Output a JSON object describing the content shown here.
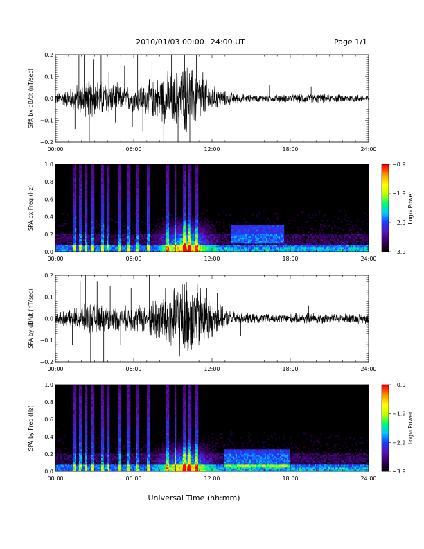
{
  "page": {
    "title": "2010/01/03  00:00−24:00 UT",
    "page_label": "Page 1/1",
    "xlabel": "Universal Time (hh:mm)"
  },
  "colors": {
    "trace": "#000000",
    "background": "#ffffff",
    "colormap": [
      "#000000",
      "#3a0060",
      "#5a14b8",
      "#1a3cff",
      "#00c8ff",
      "#00ff64",
      "#c8ff00",
      "#ffff00",
      "#ff9600",
      "#ff0000"
    ]
  },
  "chart_data": [
    {
      "type": "line",
      "name": "bx-time-series",
      "ylabel": "SPA bx dB/dt (nT/sec)",
      "xlim": [
        0,
        24
      ],
      "ylim": [
        -0.2,
        0.2
      ],
      "x_ticks": [
        "00:00",
        "06:00",
        "12:00",
        "18:00",
        "24:00"
      ],
      "y_ticks": [
        "−0.2",
        "−0.1",
        "0.0",
        "0.1",
        "0.2"
      ],
      "y_tick_values": [
        -0.2,
        -0.1,
        0.0,
        0.1,
        0.2
      ],
      "noise_amplitude_envelope": {
        "hour": [
          0,
          1,
          2,
          3,
          4,
          5,
          6,
          7,
          8,
          9,
          10,
          11,
          12,
          13,
          14,
          15,
          16,
          17,
          18,
          19,
          20,
          21,
          22,
          23,
          24
        ],
        "amplitude": [
          0.03,
          0.05,
          0.09,
          0.1,
          0.09,
          0.07,
          0.07,
          0.09,
          0.12,
          0.15,
          0.18,
          0.14,
          0.07,
          0.04,
          0.025,
          0.02,
          0.02,
          0.02,
          0.02,
          0.025,
          0.025,
          0.02,
          0.02,
          0.02,
          0.02
        ]
      },
      "spikes": [
        {
          "hour": 1.2,
          "value": 0.12
        },
        {
          "hour": 1.5,
          "value": -0.14
        },
        {
          "hour": 1.8,
          "value": 0.2
        },
        {
          "hour": 2.2,
          "value": 0.2
        },
        {
          "hour": 2.6,
          "value": -0.2
        },
        {
          "hour": 2.9,
          "value": 0.18
        },
        {
          "hour": 3.5,
          "value": 0.2
        },
        {
          "hour": 3.8,
          "value": -0.2
        },
        {
          "hour": 4.1,
          "value": 0.12
        },
        {
          "hour": 4.6,
          "value": -0.11
        },
        {
          "hour": 5.3,
          "value": 0.15
        },
        {
          "hour": 5.9,
          "value": -0.13
        },
        {
          "hour": 6.3,
          "value": 0.2
        },
        {
          "hour": 6.7,
          "value": -0.15
        },
        {
          "hour": 7.4,
          "value": 0.17
        },
        {
          "hour": 8.3,
          "value": -0.2
        },
        {
          "hour": 8.9,
          "value": 0.2
        },
        {
          "hour": 9.4,
          "value": -0.2
        },
        {
          "hour": 9.9,
          "value": 0.2
        },
        {
          "hour": 10.3,
          "value": -0.2
        },
        {
          "hour": 10.8,
          "value": 0.2
        },
        {
          "hour": 11.3,
          "value": 0.12
        },
        {
          "hour": 16.4,
          "value": 0.06
        },
        {
          "hour": 19.6,
          "value": 0.055
        }
      ]
    },
    {
      "type": "heatmap",
      "name": "bx-spectrogram",
      "ylabel": "SPA bx Freq (Hz)",
      "xlim": [
        0,
        24
      ],
      "ylim": [
        0,
        1.0
      ],
      "x_ticks": [
        "00:00",
        "06:00",
        "12:00",
        "18:00",
        "24:00"
      ],
      "y_ticks": [
        "0.0",
        "0.2",
        "0.4",
        "0.6",
        "0.8",
        "1.0"
      ],
      "y_tick_values": [
        0.0,
        0.2,
        0.4,
        0.6,
        0.8,
        1.0
      ],
      "colorbar": {
        "label": "Log₁₀ Power",
        "range": [
          -3.9,
          -0.9
        ],
        "ticks": [
          "−0.9",
          "−1.9",
          "−2.9",
          "−3.9"
        ],
        "tick_values": [
          -0.9,
          -1.9,
          -2.9,
          -3.9
        ]
      },
      "broadband_stripes_hour": [
        1.5,
        1.9,
        2.3,
        2.9,
        3.6,
        4.0,
        4.9,
        5.6,
        6.3,
        7.1,
        8.6,
        9.2,
        9.9,
        10.3,
        10.8
      ],
      "enhanced_region": {
        "hour": [
          7.5,
          12.5
        ],
        "freq": [
          0.0,
          0.4
        ]
      },
      "band_feature": {
        "hour": [
          13.5,
          17.5
        ],
        "freq": [
          0.1,
          0.3
        ]
      }
    },
    {
      "type": "line",
      "name": "by-time-series",
      "ylabel": "SPA by dB/dt (nT/sec)",
      "xlim": [
        0,
        24
      ],
      "ylim": [
        -0.2,
        0.2
      ],
      "x_ticks": [
        "00:00",
        "06:00",
        "12:00",
        "18:00",
        "24:00"
      ],
      "y_ticks": [
        "−0.2",
        "−0.1",
        "0.0",
        "0.1",
        "0.2"
      ],
      "y_tick_values": [
        -0.2,
        -0.1,
        0.0,
        0.1,
        0.2
      ],
      "noise_amplitude_envelope": {
        "hour": [
          0,
          1,
          2,
          3,
          4,
          5,
          6,
          7,
          8,
          9,
          10,
          11,
          12,
          13,
          14,
          15,
          16,
          17,
          18,
          19,
          20,
          21,
          22,
          23,
          24
        ],
        "amplitude": [
          0.03,
          0.04,
          0.07,
          0.08,
          0.07,
          0.06,
          0.07,
          0.08,
          0.14,
          0.2,
          0.2,
          0.18,
          0.1,
          0.05,
          0.03,
          0.025,
          0.025,
          0.025,
          0.025,
          0.03,
          0.03,
          0.025,
          0.025,
          0.025,
          0.03
        ]
      },
      "spikes": [
        {
          "hour": 1.3,
          "value": -0.12
        },
        {
          "hour": 1.9,
          "value": 0.17
        },
        {
          "hour": 2.3,
          "value": 0.2
        },
        {
          "hour": 2.7,
          "value": -0.2
        },
        {
          "hour": 3.2,
          "value": 0.17
        },
        {
          "hour": 3.7,
          "value": -0.2
        },
        {
          "hour": 4.2,
          "value": 0.15
        },
        {
          "hour": 5.0,
          "value": -0.12
        },
        {
          "hour": 5.8,
          "value": 0.14
        },
        {
          "hour": 6.4,
          "value": -0.18
        },
        {
          "hour": 7.2,
          "value": 0.2
        },
        {
          "hour": 11.6,
          "value": 0.14
        },
        {
          "hour": 12.4,
          "value": 0.12
        },
        {
          "hour": 14.2,
          "value": -0.08
        },
        {
          "hour": 19.4,
          "value": 0.06
        }
      ]
    },
    {
      "type": "heatmap",
      "name": "by-spectrogram",
      "ylabel": "SPA by Freq (Hz)",
      "xlim": [
        0,
        24
      ],
      "ylim": [
        0,
        1.0
      ],
      "x_ticks": [
        "00:00",
        "06:00",
        "12:00",
        "18:00",
        "24:00"
      ],
      "y_ticks": [
        "0.0",
        "0.2",
        "0.4",
        "0.6",
        "0.8",
        "1.0"
      ],
      "y_tick_values": [
        0.0,
        0.2,
        0.4,
        0.6,
        0.8,
        1.0
      ],
      "colorbar": {
        "label": "Log₁₀ Power",
        "range": [
          -3.9,
          -0.9
        ],
        "ticks": [
          "−0.9",
          "−1.9",
          "−2.9",
          "−3.9"
        ],
        "tick_values": [
          -0.9,
          -1.9,
          -2.9,
          -3.9
        ]
      },
      "broadband_stripes_hour": [
        1.5,
        1.9,
        2.3,
        2.9,
        3.6,
        4.0,
        4.9,
        5.6,
        6.3,
        7.1,
        8.6,
        9.2,
        9.9,
        10.3,
        10.8
      ],
      "enhanced_region": {
        "hour": [
          7.5,
          12.5
        ],
        "freq": [
          0.0,
          0.35
        ]
      },
      "band_feature": {
        "hour": [
          13.0,
          18.0
        ],
        "freq": [
          0.05,
          0.25
        ]
      }
    }
  ]
}
